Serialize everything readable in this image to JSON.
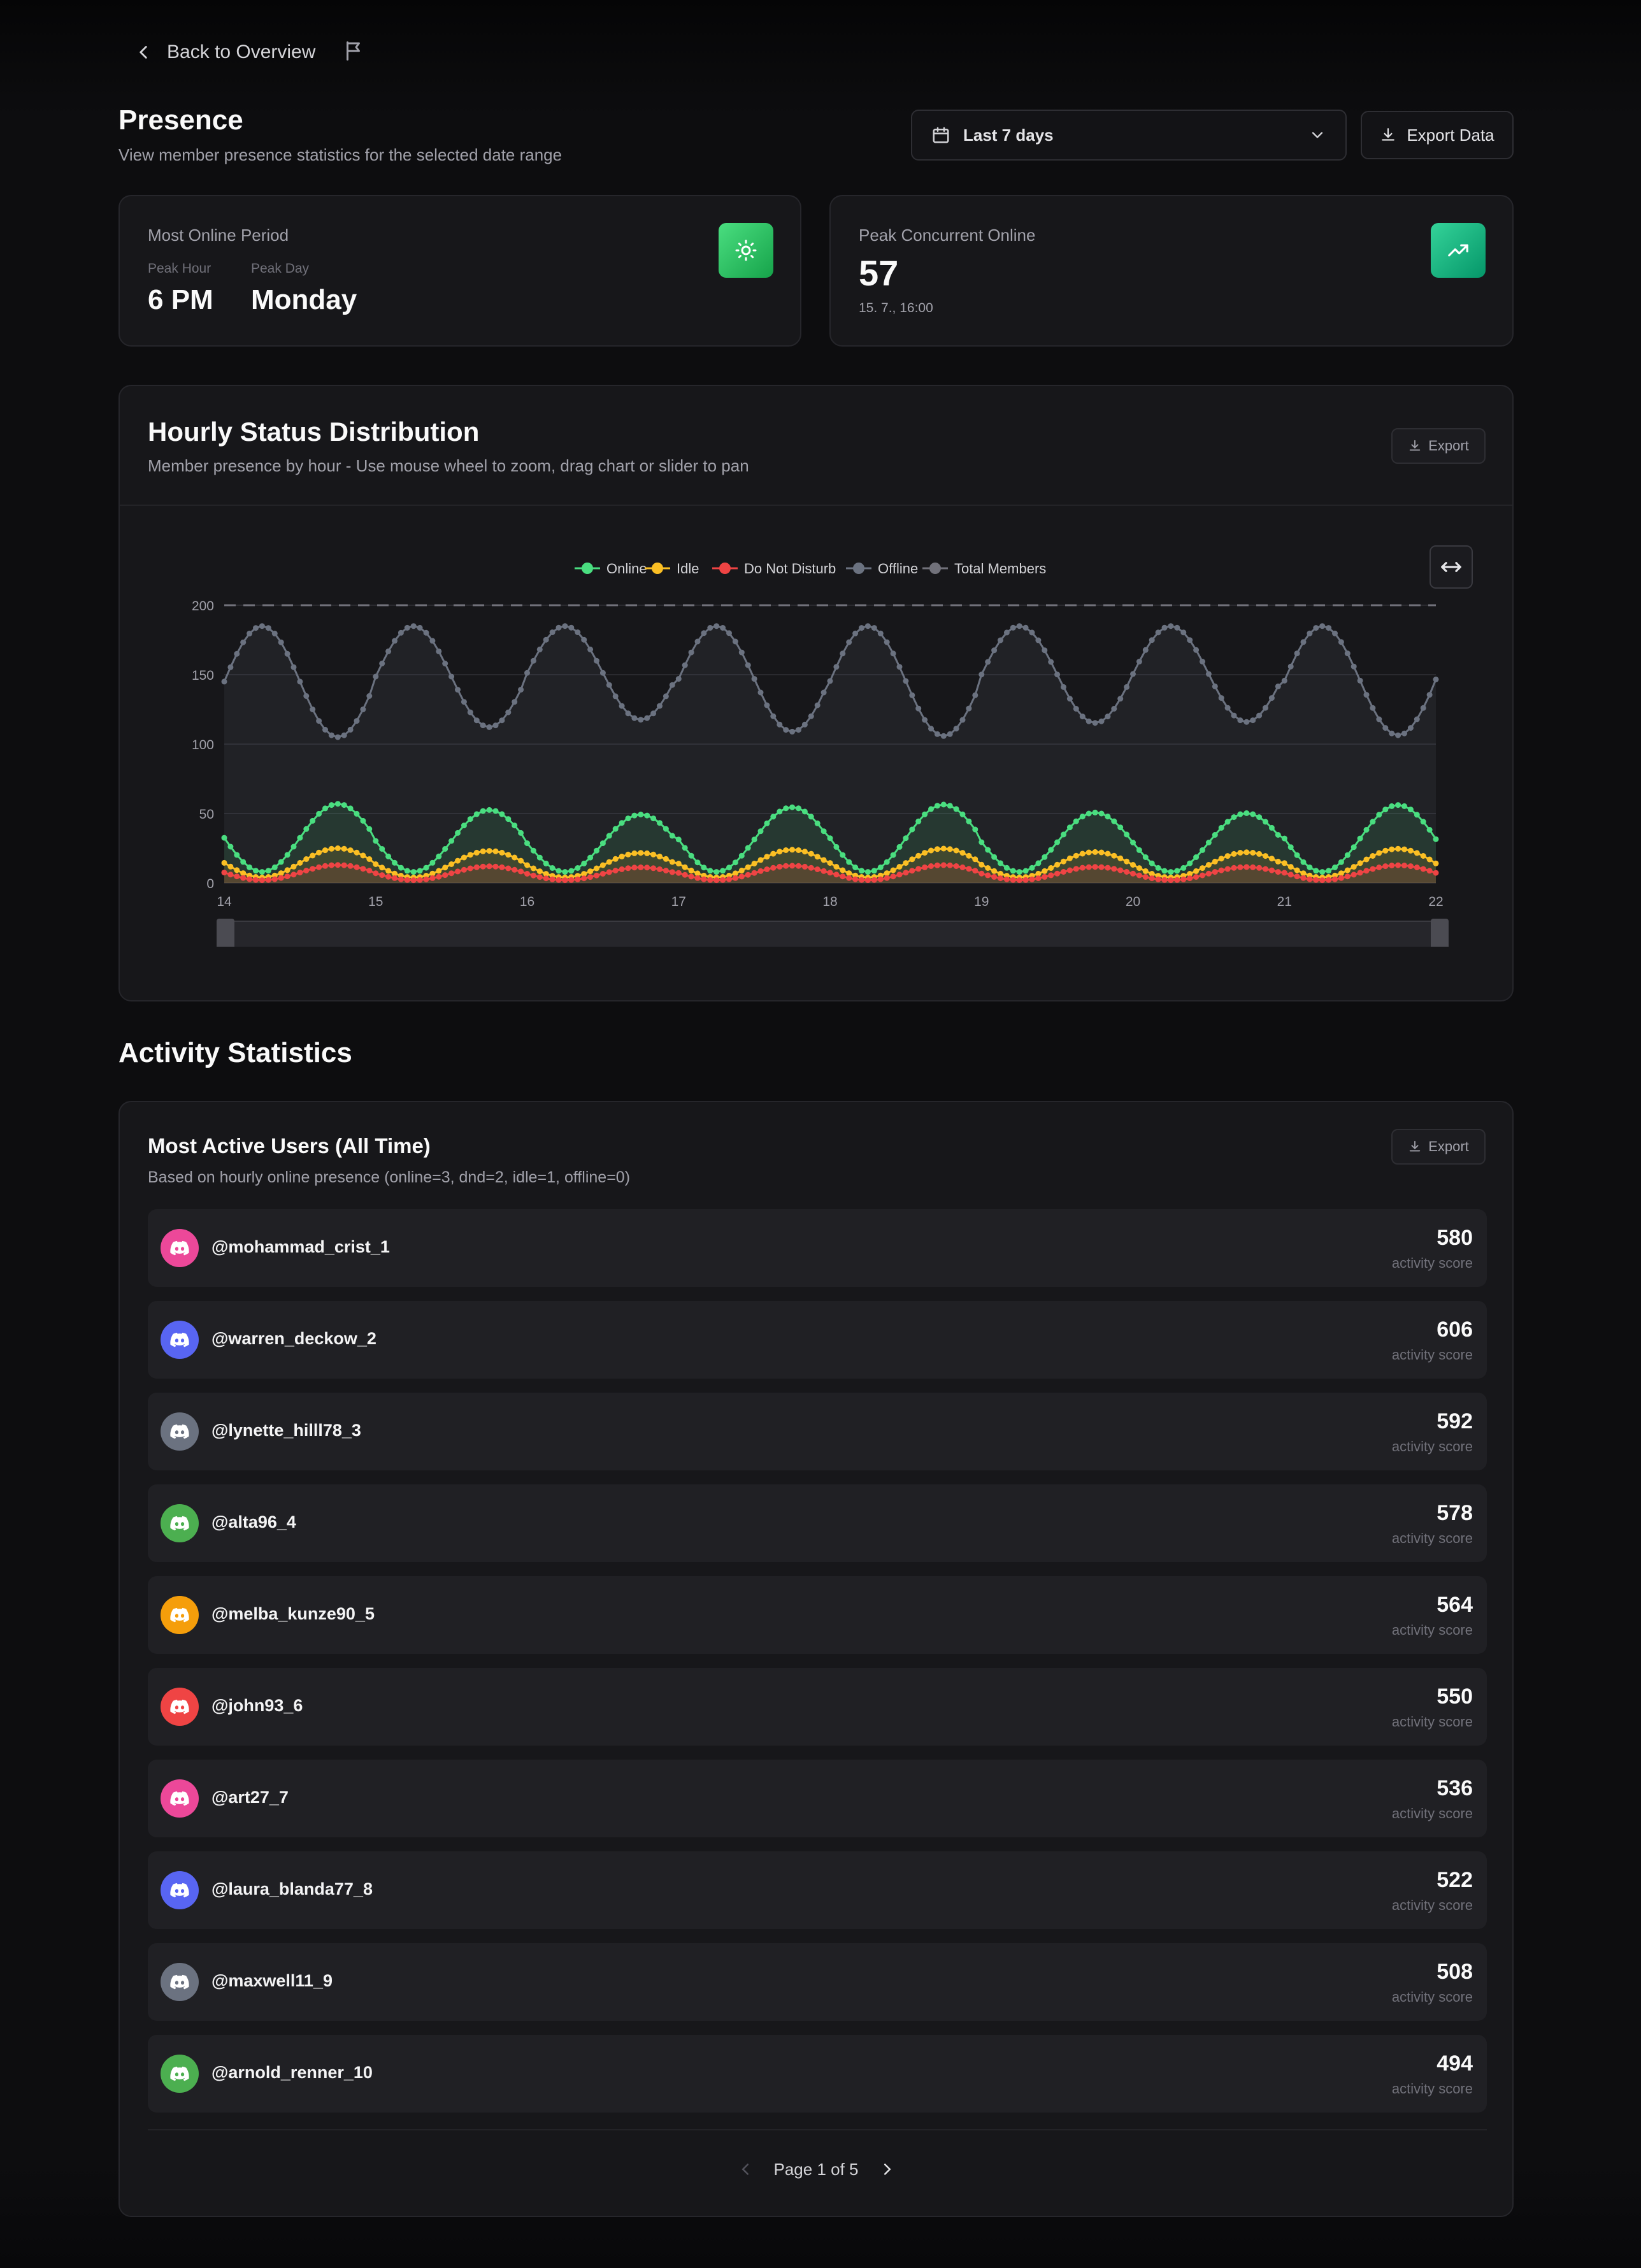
{
  "nav": {
    "back_label": "Back to Overview"
  },
  "header": {
    "title": "Presence",
    "subtitle": "View member presence statistics for the selected date range",
    "date_range": "Last 7 days",
    "export_label": "Export Data"
  },
  "stats": {
    "most_online": {
      "title": "Most Online Period",
      "peak_hour_label": "Peak Hour",
      "peak_hour": "6 PM",
      "peak_day_label": "Peak Day",
      "peak_day": "Monday",
      "accent": "#22c55e"
    },
    "peak_concurrent": {
      "title": "Peak Concurrent Online",
      "value": "57",
      "timestamp": "15. 7., 16:00",
      "accent": "#10b981"
    }
  },
  "chart_card": {
    "title": "Hourly Status Distribution",
    "subtitle": "Member presence by hour - Use mouse wheel to zoom, drag chart or slider to pan",
    "export_label": "Export"
  },
  "chart_data": {
    "type": "line",
    "x_ticks": [
      "14",
      "15",
      "16",
      "17",
      "18",
      "19",
      "20",
      "21",
      "22"
    ],
    "y_ticks": [
      "0",
      "50",
      "100",
      "150",
      "200"
    ],
    "ylim": [
      0,
      200
    ],
    "legend": [
      "Online",
      "Idle",
      "Do Not Disturb",
      "Offline",
      "Total Members"
    ],
    "series": [
      {
        "name": "Offline",
        "color": "#6b7280",
        "min": 105,
        "max": 185
      },
      {
        "name": "Online",
        "color": "#4ade80",
        "min": 8,
        "max": 57
      },
      {
        "name": "Idle",
        "color": "#fbbf24",
        "min": 4,
        "max": 25
      },
      {
        "name": "Do Not Disturb",
        "color": "#ef4444",
        "min": 2,
        "max": 13
      },
      {
        "name": "Total Members",
        "color": "#71717a",
        "value": 200
      }
    ]
  },
  "activity": {
    "section_title": "Activity Statistics",
    "card_title": "Most Active Users (All Time)",
    "card_subtitle": "Based on hourly online presence (online=3, dnd=2, idle=1, offline=0)",
    "export_label": "Export",
    "score_label": "activity score",
    "users": [
      {
        "name": "@mohammad_crist_1",
        "score": "580",
        "color": "#ec4899"
      },
      {
        "name": "@warren_deckow_2",
        "score": "606",
        "color": "#5865f2"
      },
      {
        "name": "@lynette_hilll78_3",
        "score": "592",
        "color": "#6b7280"
      },
      {
        "name": "@alta96_4",
        "score": "578",
        "color": "#4caf50"
      },
      {
        "name": "@melba_kunze90_5",
        "score": "564",
        "color": "#f59e0b"
      },
      {
        "name": "@john93_6",
        "score": "550",
        "color": "#ef4444"
      },
      {
        "name": "@art27_7",
        "score": "536",
        "color": "#ec4899"
      },
      {
        "name": "@laura_blanda77_8",
        "score": "522",
        "color": "#5865f2"
      },
      {
        "name": "@maxwell11_9",
        "score": "508",
        "color": "#6b7280"
      },
      {
        "name": "@arnold_renner_10",
        "score": "494",
        "color": "#4caf50"
      }
    ],
    "pagination": "Page 1 of 5"
  }
}
